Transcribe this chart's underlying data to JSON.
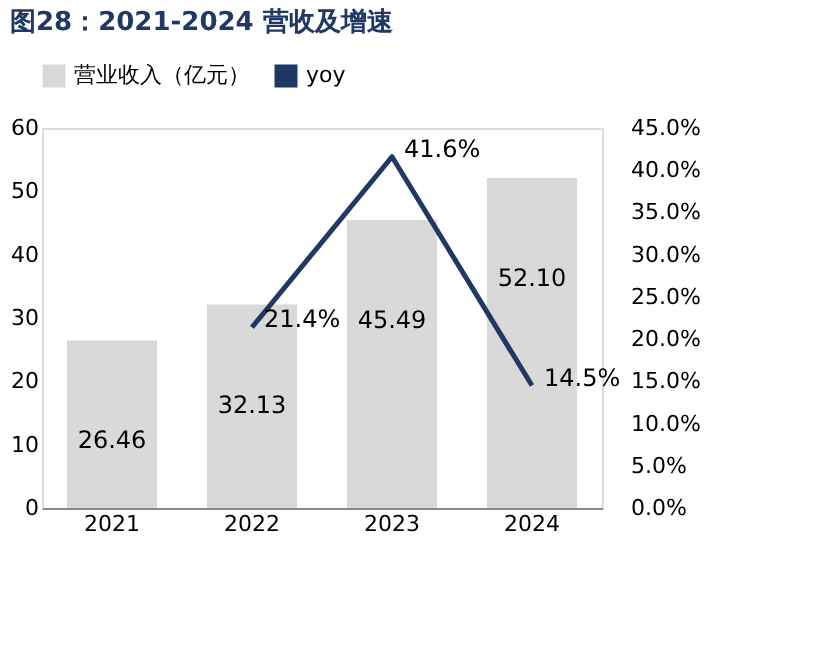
{
  "chart_data": {
    "type": "bar",
    "title": "图28：2021-2024 营收及增速",
    "categories": [
      "2021",
      "2022",
      "2023",
      "2024"
    ],
    "series": [
      {
        "name": "营业收入（亿元）",
        "color": "#d9d9d9",
        "values": [
          26.46,
          32.13,
          45.49,
          52.1
        ],
        "value_labels": [
          "26.46",
          "32.13",
          "45.49",
          "52.10"
        ]
      },
      {
        "name": "yoy",
        "type": "line",
        "axis": "y2",
        "color": "#1f3864",
        "values": [
          null,
          21.4,
          41.6,
          14.5
        ],
        "value_labels": [
          null,
          "21.4%",
          "41.6%",
          "14.5%"
        ]
      }
    ],
    "ylim": [
      0,
      60
    ],
    "yticks": [
      0,
      10,
      20,
      30,
      40,
      50,
      60
    ],
    "y2lim": [
      0,
      45
    ],
    "y2ticks": [
      {
        "value": 0,
        "label": "0.0%"
      },
      {
        "value": 5,
        "label": "5.0%"
      },
      {
        "value": 10,
        "label": "10.0%"
      },
      {
        "value": 15,
        "label": "15.0%"
      },
      {
        "value": 20,
        "label": "20.0%"
      },
      {
        "value": 25,
        "label": "25.0%"
      },
      {
        "value": 30,
        "label": "30.0%"
      },
      {
        "value": 35,
        "label": "35.0%"
      },
      {
        "value": 40,
        "label": "40.0%"
      },
      {
        "value": 45,
        "label": "45.0%"
      }
    ],
    "grid": false,
    "legend": "top",
    "marker": "none",
    "line_style": "solid"
  }
}
